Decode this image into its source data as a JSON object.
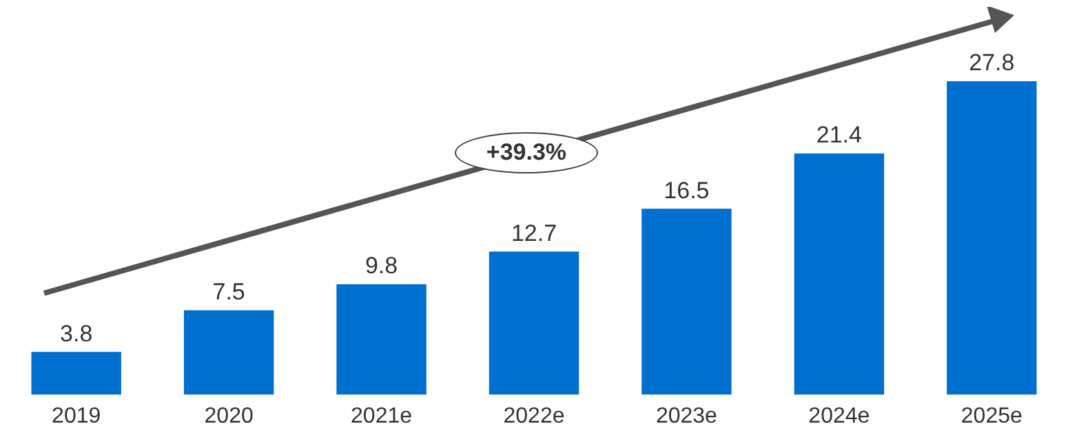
{
  "chart_data": {
    "type": "bar",
    "categories": [
      "2019",
      "2020",
      "2021e",
      "2022e",
      "2023e",
      "2024e",
      "2025e"
    ],
    "values": [
      3.8,
      7.5,
      9.8,
      12.7,
      16.5,
      21.4,
      27.8
    ],
    "color": "#0070d0",
    "data_labels": true,
    "annotations": [
      "+39.3%"
    ]
  }
}
